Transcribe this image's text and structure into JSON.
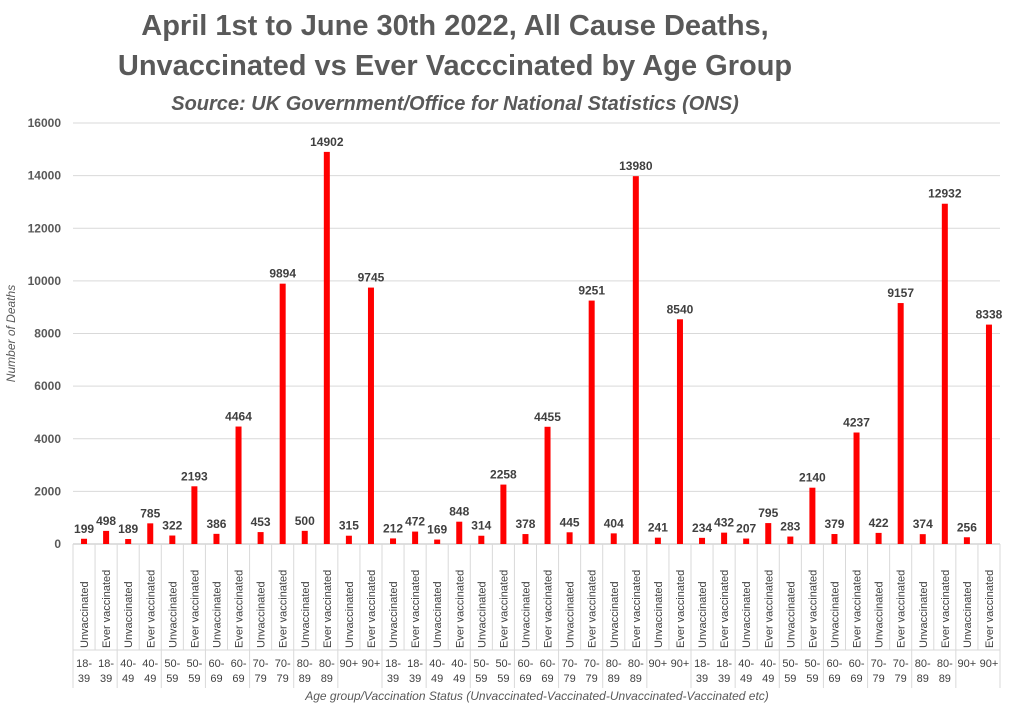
{
  "chart_data": {
    "type": "bar",
    "title": "April 1st to June 30th 2022, All Cause Deaths,",
    "title_line2": "Unvaccinated vs Ever Vacccinated by Age Group",
    "subtitle": "Source: UK Government/Office for National Statistics (ONS)",
    "xlabel": "Age group/Vaccination Status (Unvaccinated-Vaccinated-Unvaccinated-Vaccinated etc)",
    "ylabel": "Number of Deaths",
    "ylim": [
      0,
      16000
    ],
    "yticks": [
      0,
      2000,
      4000,
      6000,
      8000,
      10000,
      12000,
      14000,
      16000
    ],
    "grid": true,
    "legend": "none",
    "bar_color": "#ff0000",
    "status_labels": [
      "Unvaccinated",
      "Ever vaccinated"
    ],
    "age_groups": [
      [
        "18-",
        "39"
      ],
      [
        "40-",
        "49"
      ],
      [
        "50-",
        "59"
      ],
      [
        "60-",
        "69"
      ],
      [
        "70-",
        "79"
      ],
      [
        "80-",
        "89"
      ],
      [
        "90+",
        ""
      ]
    ],
    "values": [
      199,
      498,
      189,
      785,
      322,
      2193,
      386,
      4464,
      453,
      9894,
      500,
      14902,
      315,
      9745,
      212,
      472,
      169,
      848,
      314,
      2258,
      378,
      4455,
      445,
      9251,
      404,
      13980,
      241,
      8540,
      234,
      432,
      207,
      795,
      283,
      2140,
      379,
      4237,
      422,
      9157,
      374,
      12932,
      256,
      8338
    ]
  }
}
